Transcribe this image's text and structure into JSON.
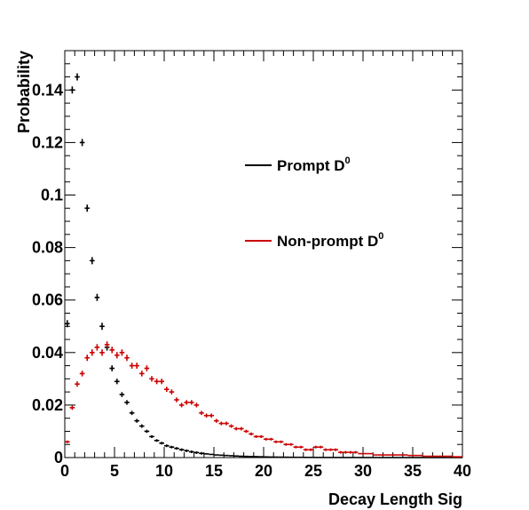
{
  "chart_data": {
    "type": "scatter",
    "xlabel": "Decay Length Sig",
    "ylabel": "Probability",
    "xlim": [
      0,
      40
    ],
    "ylim": [
      0,
      0.155
    ],
    "xticks": [
      "0",
      "5",
      "10",
      "15",
      "20",
      "25",
      "30",
      "35",
      "40"
    ],
    "yticks": [
      "0",
      "0.02",
      "0.04",
      "0.06",
      "0.08",
      "0.1",
      "0.12",
      "0.14"
    ],
    "grid": false,
    "legend_position": "top-right",
    "bin_width": 0.5,
    "series": [
      {
        "name": "Prompt D",
        "name_superscript": "0",
        "color": "#000000",
        "x": [
          0.25,
          0.75,
          1.25,
          1.75,
          2.25,
          2.75,
          3.25,
          3.75,
          4.25,
          4.75,
          5.25,
          5.75,
          6.25,
          6.75,
          7.25,
          7.75,
          8.25,
          8.75,
          9.25,
          9.75,
          10.25,
          10.75,
          11.25,
          11.75,
          12.25,
          12.75,
          13.25,
          13.75,
          14.25,
          14.75,
          15.25,
          15.75,
          16.25,
          16.75,
          17.25,
          17.75,
          18.25,
          18.75,
          19.25,
          19.75,
          20.25,
          20.75,
          21.25,
          21.75,
          22.25,
          22.75,
          23.25,
          23.75,
          24.25,
          24.75,
          25.25,
          25.75,
          26.25,
          26.75,
          27.25,
          27.75,
          28.25,
          28.75,
          29.25,
          29.75,
          30.25,
          30.75,
          31.25,
          31.75,
          32.25,
          32.75,
          33.25,
          33.75,
          34.25,
          34.75,
          35.25,
          35.75,
          36.25,
          36.75,
          37.25,
          37.75,
          38.25,
          38.75,
          39.25,
          39.75
        ],
        "y": [
          0.051,
          0.14,
          0.145,
          0.12,
          0.095,
          0.075,
          0.061,
          0.05,
          0.042,
          0.034,
          0.029,
          0.024,
          0.021,
          0.017,
          0.014,
          0.012,
          0.01,
          0.008,
          0.0065,
          0.0055,
          0.0045,
          0.004,
          0.0035,
          0.003,
          0.0026,
          0.0022,
          0.0019,
          0.0016,
          0.0014,
          0.0012,
          0.001,
          0.0009,
          0.0008,
          0.0007,
          0.0006,
          0.0005,
          0.00045,
          0.0004,
          0.00035,
          0.0003,
          0.00025,
          0.0002,
          0.00018,
          0.00016,
          0.00014,
          0.00012,
          0.0001,
          0.0001,
          8e-05,
          8e-05,
          6e-05,
          6e-05,
          5e-05,
          5e-05,
          4e-05,
          4e-05,
          3e-05,
          3e-05,
          3e-05,
          2e-05,
          2e-05,
          2e-05,
          2e-05,
          1e-05,
          1e-05,
          1e-05,
          1e-05,
          1e-05,
          1e-05,
          1e-05,
          1e-05,
          1e-05,
          1e-05,
          1e-05,
          1e-05,
          1e-05,
          1e-05,
          1e-05,
          1e-05,
          1e-05
        ]
      },
      {
        "name": "Non-prompt D",
        "name_superscript": "0",
        "color": "#cc0000",
        "x": [
          0.25,
          0.75,
          1.25,
          1.75,
          2.25,
          2.75,
          3.25,
          3.75,
          4.25,
          4.75,
          5.25,
          5.75,
          6.25,
          6.75,
          7.25,
          7.75,
          8.25,
          8.75,
          9.25,
          9.75,
          10.25,
          10.75,
          11.25,
          11.75,
          12.25,
          12.75,
          13.25,
          13.75,
          14.25,
          14.75,
          15.25,
          15.75,
          16.25,
          16.75,
          17.25,
          17.75,
          18.25,
          18.75,
          19.25,
          19.75,
          20.25,
          20.75,
          21.25,
          21.75,
          22.25,
          22.75,
          23.25,
          23.75,
          24.25,
          24.75,
          25.25,
          25.75,
          26.25,
          26.75,
          27.25,
          27.75,
          28.25,
          28.75,
          29.25,
          29.75,
          30.25,
          30.75,
          31.25,
          31.75,
          32.25,
          32.75,
          33.25,
          33.75,
          34.25,
          34.75,
          35.25,
          35.75,
          36.25,
          36.75,
          37.25,
          37.75,
          38.25,
          38.75,
          39.25,
          39.75
        ],
        "y": [
          0.006,
          0.019,
          0.028,
          0.032,
          0.038,
          0.04,
          0.042,
          0.04,
          0.043,
          0.041,
          0.039,
          0.04,
          0.038,
          0.035,
          0.035,
          0.032,
          0.034,
          0.03,
          0.029,
          0.029,
          0.026,
          0.025,
          0.022,
          0.02,
          0.021,
          0.021,
          0.02,
          0.017,
          0.016,
          0.016,
          0.014,
          0.013,
          0.013,
          0.012,
          0.011,
          0.011,
          0.01,
          0.009,
          0.008,
          0.008,
          0.007,
          0.007,
          0.006,
          0.006,
          0.005,
          0.005,
          0.004,
          0.004,
          0.003,
          0.003,
          0.004,
          0.004,
          0.003,
          0.003,
          0.003,
          0.002,
          0.002,
          0.002,
          0.002,
          0.0015,
          0.0015,
          0.0015,
          0.001,
          0.001,
          0.001,
          0.001,
          0.001,
          0.001,
          0.001,
          0.0008,
          0.0008,
          0.0008,
          0.0005,
          0.0005,
          0.0005,
          0.0005,
          0.0005,
          0.0005,
          0.0003,
          0.0003
        ]
      }
    ]
  }
}
